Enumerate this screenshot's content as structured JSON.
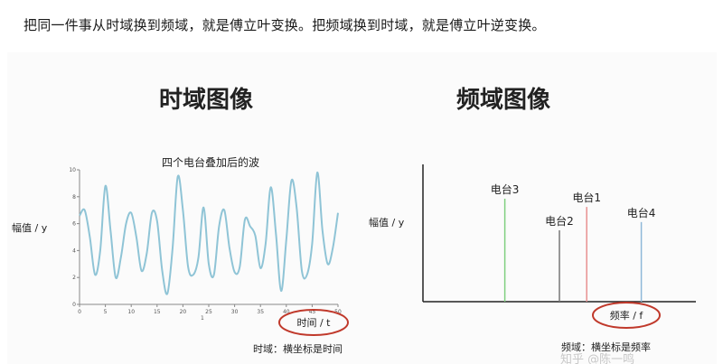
{
  "intro_text": "把同一件事从时域换到频域，就是傅立叶变换。把频域换到时域，就是傅立叶逆变换。",
  "left_panel": {
    "title": "时域图像",
    "subtitle": "四个电台叠加后的波",
    "ylabel": "幅值 / y",
    "xlabel": "时间 / t",
    "note": "时域：横坐标是时间",
    "x_ticks": [
      "0",
      "5",
      "10",
      "15",
      "20",
      "25",
      "30",
      "35",
      "40",
      "45",
      "50"
    ],
    "y_ticks": [
      "0",
      "2",
      "4",
      "6",
      "8",
      "10"
    ],
    "small_mark": "1"
  },
  "right_panel": {
    "title": "频域图像",
    "ylabel": "幅值 / y",
    "xlabel": "频率 / f",
    "note": "频域：横坐标是频率"
  },
  "watermark": "知乎 @陈一鸣",
  "colors": {
    "wave": "#8fc4d6",
    "highlight_circle": "#c0392b",
    "station3": "#7fcf7f",
    "station2": "#777777",
    "station1": "#e89090",
    "station4": "#8fb8d8"
  },
  "chart_data": [
    {
      "type": "line",
      "title": "四个电台叠加后的波",
      "xlabel": "时间 / t",
      "ylabel": "幅值 / y",
      "xlim": [
        0,
        50
      ],
      "ylim": [
        0,
        10
      ],
      "series": [
        {
          "x": [
            0,
            1,
            2,
            3,
            4,
            5,
            6,
            7,
            8,
            9,
            10,
            11,
            12,
            13,
            14,
            15,
            16,
            17,
            18,
            19,
            20,
            21,
            22,
            23,
            24,
            25,
            26,
            27,
            28,
            29,
            30,
            31,
            32,
            33,
            34,
            35,
            36,
            37,
            38,
            39,
            40,
            41,
            42,
            43,
            44,
            45,
            46,
            47,
            48,
            49,
            50
          ],
          "values": [
            6.6,
            7.0,
            5.0,
            2.2,
            4.0,
            8.8,
            5.5,
            2.0,
            3.5,
            6.0,
            6.8,
            5.0,
            2.5,
            3.8,
            6.8,
            6.2,
            2.5,
            0.8,
            4.2,
            9.5,
            7.0,
            2.8,
            2.2,
            3.5,
            7.2,
            3.0,
            2.2,
            5.8,
            7.0,
            4.2,
            2.4,
            2.8,
            6.3,
            5.8,
            5.1,
            2.7,
            4.5,
            8.7,
            5.2,
            1.0,
            4.8,
            9.2,
            7.2,
            2.5,
            2.2,
            4.5,
            9.8,
            5.5,
            3.0,
            4.2,
            6.8
          ]
        }
      ]
    },
    {
      "type": "bar",
      "xlabel": "频率 / f",
      "ylabel": "幅值 / y",
      "ylim": [
        0,
        10
      ],
      "categories": [
        "电台3",
        "电台2",
        "电台1",
        "电台4"
      ],
      "positions": [
        0.3,
        0.5,
        0.6,
        0.8
      ],
      "values": [
        7.5,
        5.2,
        6.9,
        5.8
      ]
    }
  ]
}
